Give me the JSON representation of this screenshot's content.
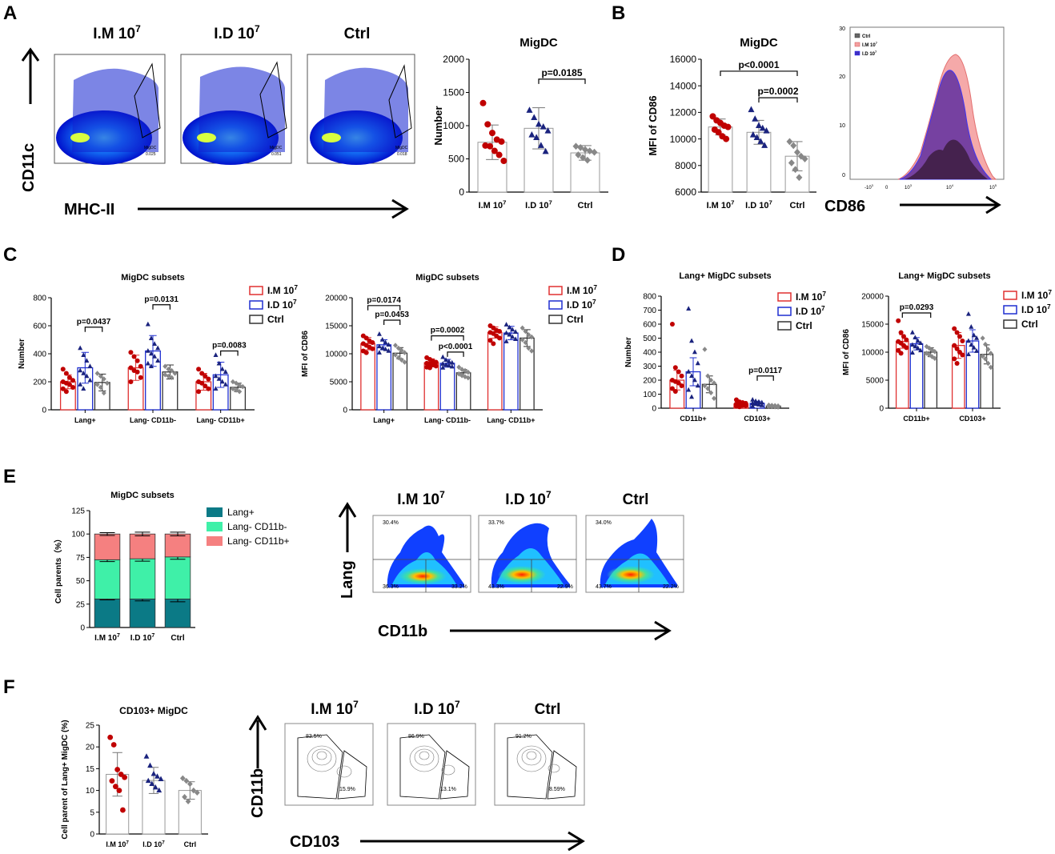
{
  "panels": {
    "A": "A",
    "B": "B",
    "C": "C",
    "D": "D",
    "E": "E",
    "F": "F"
  },
  "groups": {
    "im": "I.M 10",
    "id": "I.D 10",
    "ctrl": "Ctrl",
    "sup": "7"
  },
  "colors": {
    "im": "#e03030",
    "id": "#1f2fd0",
    "ctrl": "#333333",
    "im_dot": "#c00000",
    "id_dot": "#1a237e",
    "ctrl_dot": "#888888",
    "lang": "#0b7a86",
    "cd11bneg": "#3ff0a8",
    "cd11bpos": "#f58080"
  },
  "flow_a": {
    "titles": [
      "I.M 10",
      "I.D 10",
      "Ctrl"
    ],
    "sup": "7",
    "y_axis": "CD11c",
    "x_axis": "MHC-II",
    "gate_label": "MigDC",
    "gate_values": [
      "0.025",
      "0.051",
      "0.018"
    ]
  },
  "hist_b": {
    "x_axis": "CD86",
    "legend": [
      "Ctrl",
      "I.M 10",
      "I.D 10"
    ],
    "sup": "7",
    "yticks": [
      "30",
      "20",
      "10",
      "0"
    ],
    "xticks": [
      "-10",
      "0",
      "10",
      "10",
      "10",
      "10"
    ],
    "xsup": [
      "3",
      "",
      "3",
      "4",
      "5",
      ""
    ]
  },
  "flow_e": {
    "titles": [
      "I.M 10",
      "I.D 10",
      "Ctrl"
    ],
    "sup": "7",
    "y_axis": "Lang",
    "x_axis": "CD11b",
    "quadrants": [
      {
        "ul": "30.4%",
        "ll": "36.3%",
        "lr": "33.2%"
      },
      {
        "ul": "33.7%",
        "ll": "43.3%",
        "lr": "22.9%"
      },
      {
        "ul": "34.0%",
        "ll": "43.7%",
        "lr": "22.2%"
      }
    ]
  },
  "flow_f": {
    "titles": [
      "I.M 10",
      "I.D 10",
      "Ctrl"
    ],
    "sup": "7",
    "y_axis": "CD11b",
    "x_axis": "CD103",
    "gates": [
      {
        "a": "83.5%",
        "b": "15.9%"
      },
      {
        "a": "86.9%",
        "b": "13.1%"
      },
      {
        "a": "91.2%",
        "b": "8.59%"
      }
    ]
  },
  "chart_data": [
    {
      "id": "A",
      "type": "bar",
      "title": "MigDC",
      "ylabel": "Number",
      "ylim": [
        0,
        2000
      ],
      "yticks": [
        0,
        500,
        1000,
        1500,
        2000
      ],
      "categories": [
        "I.M 10",
        "I.D 10",
        "Ctrl"
      ],
      "means": [
        750,
        960,
        590
      ],
      "sd": [
        260,
        310,
        110
      ],
      "points": [
        [
          1340,
          1020,
          890,
          790,
          760,
          700,
          690,
          620,
          560,
          470
        ],
        [
          1230,
          1120,
          1020,
          980,
          920,
          860,
          820,
          700,
          610
        ],
        [
          690,
          670,
          640,
          620,
          600,
          560,
          520,
          480
        ]
      ],
      "comparisons": [
        {
          "from": 1,
          "to": 2,
          "label": "p=0.0185",
          "y": 1700
        }
      ]
    },
    {
      "id": "B",
      "type": "bar",
      "title": "MigDC",
      "ylabel": "MFI of CD86",
      "ylim": [
        6000,
        16000
      ],
      "yticks": [
        6000,
        8000,
        10000,
        12000,
        14000,
        16000
      ],
      "categories": [
        "I.M 10",
        "I.D 10",
        "Ctrl"
      ],
      "means": [
        10900,
        10500,
        8700
      ],
      "sd": [
        600,
        900,
        1100
      ],
      "points": [
        [
          11700,
          11400,
          11200,
          11000,
          10900,
          10700,
          10500,
          10200,
          10000
        ],
        [
          12200,
          11500,
          11000,
          10800,
          10600,
          10300,
          10100,
          9800,
          9500
        ],
        [
          9800,
          9500,
          9000,
          8700,
          8500,
          8200,
          7700,
          7100
        ]
      ],
      "comparisons": [
        {
          "from": 0,
          "to": 2,
          "label": "p<0.0001",
          "y": 15100
        },
        {
          "from": 1,
          "to": 2,
          "label": "p=0.0002",
          "y": 13100
        }
      ]
    },
    {
      "id": "C1",
      "type": "bar",
      "title": "MigDC subsets",
      "ylabel": "Number",
      "ylim": [
        0,
        800
      ],
      "yticks": [
        0,
        200,
        400,
        600,
        800
      ],
      "categories": [
        "Lang+",
        "Lang- CD11b-",
        "Lang- CD11b+"
      ],
      "series": [
        {
          "name": "I.M 10",
          "means": [
            200,
            300,
            200
          ],
          "sd": [
            50,
            90,
            60
          ],
          "points": [
            [
              290,
              260,
              230,
              210,
              200,
              190,
              180,
              160,
              150,
              130
            ],
            [
              410,
              380,
              350,
              310,
              300,
              280,
              270,
              230,
              200
            ],
            [
              290,
              260,
              240,
              220,
              200,
              190,
              170,
              150,
              130
            ]
          ]
        },
        {
          "name": "I.D 10",
          "means": [
            300,
            420,
            250
          ],
          "sd": [
            110,
            110,
            90
          ],
          "points": [
            [
              440,
              390,
              350,
              310,
              280,
              260,
              240,
              210,
              180,
              150
            ],
            [
              610,
              510,
              470,
              440,
              420,
              400,
              380,
              350,
              330,
              310
            ],
            [
              390,
              330,
              290,
              270,
              240,
              220,
              200,
              180,
              150
            ]
          ]
        },
        {
          "name": "Ctrl",
          "means": [
            195,
            270,
            160
          ],
          "sd": [
            60,
            50,
            30
          ],
          "points": [
            [
              260,
              240,
              220,
              190,
              180,
              160,
              120
            ],
            [
              310,
              290,
              280,
              260,
              250,
              240,
              230
            ],
            [
              200,
              190,
              175,
              165,
              150,
              140,
              130
            ]
          ]
        }
      ],
      "comparisons": [
        {
          "cat": 0,
          "from": 1,
          "to": 2,
          "label": "p=0.0437",
          "y": 590
        },
        {
          "cat": 1,
          "from": 1,
          "to": 2,
          "label": "p=0.0131",
          "y": 750
        },
        {
          "cat": 2,
          "from": 1,
          "to": 2,
          "label": "p=0.0083",
          "y": 420
        }
      ]
    },
    {
      "id": "C2",
      "type": "bar",
      "title": "MigDC subsets",
      "ylabel": "MFI of CD86",
      "ylim": [
        0,
        20000
      ],
      "yticks": [
        0,
        5000,
        10000,
        15000,
        20000
      ],
      "categories": [
        "Lang+",
        "Lang- CD11b-",
        "Lang- CD11b+"
      ],
      "series": [
        {
          "name": "I.M 10",
          "means": [
            11800,
            8400,
            13800
          ],
          "sd": [
            1100,
            700,
            1000
          ],
          "points": [
            [
              13200,
              12800,
              12300,
              12000,
              11800,
              11500,
              11200,
              10900,
              10500,
              10200
            ],
            [
              9300,
              9000,
              8700,
              8500,
              8300,
              8200,
              8000,
              7800,
              7600,
              7500
            ],
            [
              15000,
              14600,
              14200,
              14000,
              13800,
              13600,
              13200,
              12800,
              12400,
              11800
            ]
          ]
        },
        {
          "name": "I.D 10",
          "means": [
            11600,
            8300,
            13700
          ],
          "sd": [
            900,
            700,
            1200
          ],
          "points": [
            [
              13500,
              12500,
              12000,
              11600,
              11300,
              11000,
              10800,
              10500,
              10200
            ],
            [
              9400,
              8900,
              8600,
              8400,
              8200,
              8000,
              7900,
              7700,
              7500
            ],
            [
              15200,
              14700,
              14300,
              13900,
              13700,
              13400,
              13000,
              12600,
              12200
            ]
          ]
        },
        {
          "name": "Ctrl",
          "means": [
            10100,
            6600,
            12800
          ],
          "sd": [
            1000,
            600,
            1500
          ],
          "points": [
            [
              11500,
              11000,
              10600,
              10200,
              9800,
              9300,
              8900,
              8500
            ],
            [
              7600,
              7200,
              7000,
              6700,
              6400,
              6100,
              5900,
              5700
            ],
            [
              14600,
              14000,
              13400,
              13000,
              12500,
              12000,
              11000,
              10500
            ]
          ]
        }
      ],
      "comparisons": [
        {
          "cat": 0,
          "from": 0,
          "to": 2,
          "label": "p=0.0174",
          "y": 18600
        },
        {
          "cat": 0,
          "from": 1,
          "to": 2,
          "label": "p=0.0453",
          "y": 16000
        },
        {
          "cat": 1,
          "from": 0,
          "to": 2,
          "label": "p=0.0002",
          "y": 13200
        },
        {
          "cat": 1,
          "from": 1,
          "to": 2,
          "label": "p<0.0001",
          "y": 10300
        }
      ]
    },
    {
      "id": "D1",
      "type": "bar",
      "title": "Lang+ MigDC subsets",
      "ylabel": "Number",
      "ylim": [
        0,
        800
      ],
      "yticks": [
        0,
        100,
        200,
        300,
        400,
        500,
        600,
        700,
        800
      ],
      "categories": [
        "CD11b+",
        "CD103+"
      ],
      "series": [
        {
          "name": "I.M 10",
          "means": [
            200,
            30
          ],
          "sd": [
            70,
            12
          ],
          "points": [
            [
              600,
              290,
              260,
              230,
              200,
              190,
              180,
              160,
              140,
              120
            ],
            [
              60,
              45,
              40,
              35,
              30,
              25,
              20,
              18,
              15,
              10
            ]
          ]
        },
        {
          "name": "I.D 10",
          "means": [
            260,
            35
          ],
          "sd": [
            100,
            15
          ],
          "points": [
            [
              710,
              480,
              400,
              320,
              260,
              230,
              200,
              160,
              130,
              80
            ],
            [
              60,
              50,
              45,
              40,
              35,
              30,
              25,
              20,
              15
            ]
          ]
        },
        {
          "name": "Ctrl",
          "means": [
            170,
            15
          ],
          "sd": [
            60,
            5
          ],
          "points": [
            [
              420,
              230,
              200,
              180,
              160,
              140,
              110,
              70
            ],
            [
              22,
              20,
              18,
              16,
              14,
              12,
              10,
              8
            ]
          ]
        }
      ],
      "comparisons": [
        {
          "cat": 1,
          "from": 1,
          "to": 2,
          "label": "p=0.0117",
          "y": 230
        }
      ]
    },
    {
      "id": "D2",
      "type": "bar",
      "title": "Lang+ MigDC subsets",
      "ylabel": "MFI of CD86",
      "ylim": [
        0,
        20000
      ],
      "yticks": [
        0,
        5000,
        10000,
        15000,
        20000
      ],
      "categories": [
        "CD11b+",
        "CD103+"
      ],
      "series": [
        {
          "name": "I.M 10",
          "means": [
            11900,
            11200
          ],
          "sd": [
            1200,
            2300
          ],
          "points": [
            [
              15600,
              13500,
              12800,
              12200,
              11900,
              11600,
              11200,
              10800,
              10300,
              9800
            ],
            [
              14200,
              13500,
              12800,
              12000,
              11200,
              10600,
              10000,
              9500,
              8800,
              8000
            ]
          ]
        },
        {
          "name": "I.D 10",
          "means": [
            11500,
            12000
          ],
          "sd": [
            1100,
            2000
          ],
          "points": [
            [
              13500,
              12600,
              12000,
              11600,
              11300,
              11000,
              10700,
              10300,
              9900
            ],
            [
              16800,
              14500,
              13000,
              12500,
              12000,
              11300,
              10800,
              10200,
              9600
            ]
          ]
        },
        {
          "name": "Ctrl",
          "means": [
            10000,
            9600
          ],
          "sd": [
            800,
            1700
          ],
          "points": [
            [
              11000,
              10700,
              10400,
              10100,
              9800,
              9500,
              9200,
              8900
            ],
            [
              12500,
              11400,
              10500,
              9800,
              9300,
              8800,
              8000,
              7300
            ]
          ]
        }
      ],
      "comparisons": [
        {
          "cat": 0,
          "from": 0,
          "to": 2,
          "label": "p=0.0293",
          "y": 17000
        }
      ]
    },
    {
      "id": "E",
      "type": "bar",
      "stacked": true,
      "title": "MigDC subsets",
      "ylabel": "Cell parents（%）",
      "ylim": [
        0,
        125
      ],
      "yticks": [
        0,
        25,
        50,
        75,
        100,
        125
      ],
      "categories": [
        "I.M 10",
        "I.D 10",
        "Ctrl"
      ],
      "series": [
        {
          "name": "Lang+",
          "values": [
            30.5,
            30.5,
            30.5
          ],
          "sd": [
            2,
            4,
            6
          ]
        },
        {
          "name": "Lang- CD11b-",
          "values": [
            42,
            43,
            45
          ],
          "sd": [
            4,
            5,
            5
          ]
        },
        {
          "name": "Lang- CD11b+",
          "values": [
            27.5,
            26.5,
            24.5
          ],
          "sd": [
            3,
            4,
            4
          ]
        }
      ]
    },
    {
      "id": "F",
      "type": "bar",
      "title": "CD103+ MigDC",
      "ylabel": "Cell parent of Lang+ MigDC (%)",
      "ylim": [
        0,
        25
      ],
      "yticks": [
        0,
        5,
        10,
        15,
        20,
        25
      ],
      "categories": [
        "I.M 10",
        "I.D 10",
        "Ctrl"
      ],
      "means": [
        13.7,
        12.3,
        10.0
      ],
      "sd": [
        5.0,
        3.0,
        2.0
      ],
      "points": [
        [
          22.2,
          20.5,
          14.8,
          13.7,
          13.0,
          12.2,
          10.9,
          10.0,
          5.5
        ],
        [
          17.8,
          15.7,
          13.8,
          13.2,
          12.6,
          12.2,
          11.5,
          10.7,
          10.0
        ],
        [
          12.8,
          12.2,
          11.5,
          10.0,
          9.5,
          8.5,
          7.5
        ]
      ]
    }
  ]
}
